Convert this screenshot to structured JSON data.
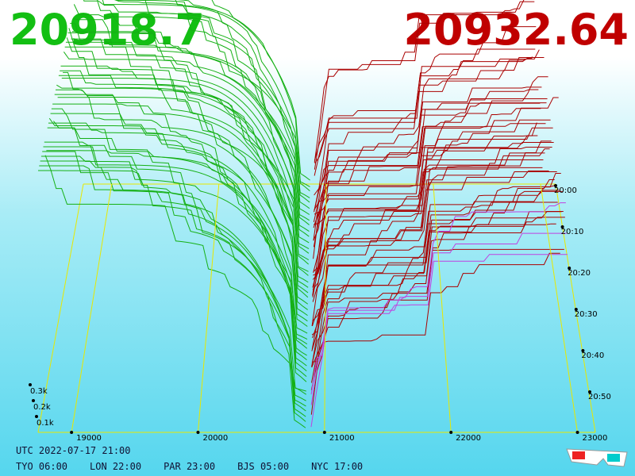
{
  "header": {
    "bid": "20918.7",
    "ask": "20932.64"
  },
  "price_axis": [
    "19000",
    "20000",
    "21000",
    "22000",
    "23000"
  ],
  "depth_axis": [
    "0.1k",
    "0.2k",
    "0.3k"
  ],
  "time_axis": [
    "20:00",
    "20:10",
    "20:20",
    "20:30",
    "20:40",
    "20:50"
  ],
  "footer": {
    "utc": "UTC 2022-07-17 21:00",
    "clocks": [
      "TYO 06:00",
      "LON 22:00",
      "PAR 23:00",
      "BJS 05:00",
      "NYC 17:00"
    ]
  }
}
